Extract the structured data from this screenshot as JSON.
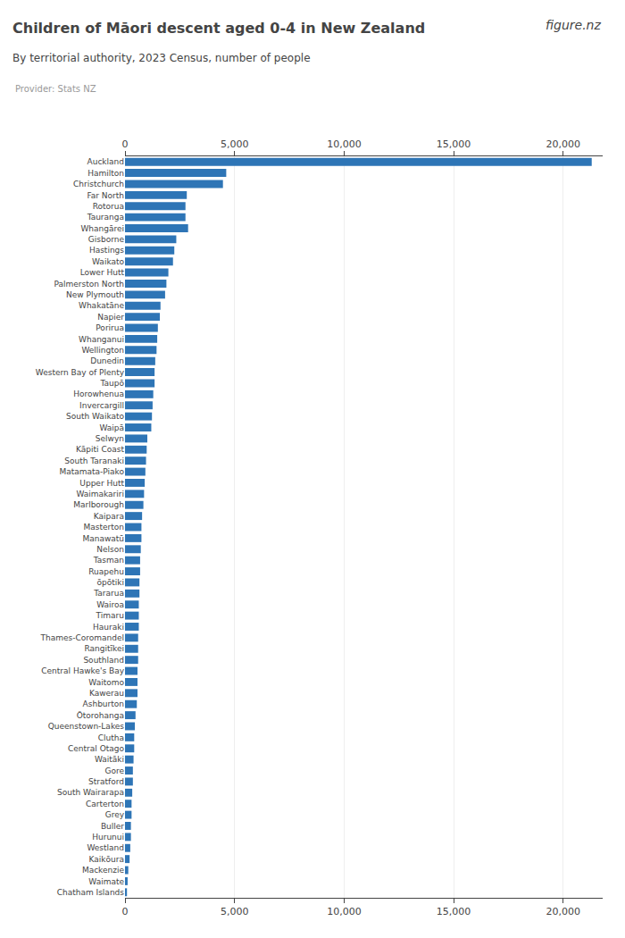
{
  "chart_data": {
    "type": "bar",
    "orientation": "horizontal",
    "title": "Children of Māori descent aged 0-4 in New Zealand",
    "subtitle": "By territorial authority, 2023 Census, number of people",
    "annotations": [
      "Provider: Stats NZ",
      "figure.nz"
    ],
    "color": "#2e75b6",
    "grid": true,
    "xlim": [
      0,
      21800
    ],
    "xticks": [
      0,
      {
        "value": 5000,
        "label": "5,000"
      },
      {
        "value": 10000,
        "label": "10,000"
      },
      {
        "value": 15000,
        "label": "15,000"
      },
      {
        "value": 20000,
        "label": "20,000"
      }
    ],
    "categories": [
      "Auckland",
      "Hamilton",
      "Christchurch",
      "Far North",
      "Rotorua",
      "Tauranga",
      "Whangārei",
      "Gisborne",
      "Hastings",
      "Waikato",
      "Lower Hutt",
      "Palmerston North",
      "New Plymouth",
      "Whakatāne",
      "Napier",
      "Porirua",
      "Whanganui",
      "Wellington",
      "Dunedin",
      "Western Bay of Plenty",
      "Taupō",
      "Horowhenua",
      "Invercargill",
      "South Waikato",
      "Waipā",
      "Selwyn",
      "Kāpiti Coast",
      "South Taranaki",
      "Matamata-Piako",
      "Upper Hutt",
      "Waimakariri",
      "Marlborough",
      "Kaipara",
      "Masterton",
      "Manawatū",
      "Nelson",
      "Tasman",
      "Ruapehu",
      "ōpōtiki",
      "Tararua",
      "Wairoa",
      "Timaru",
      "Hauraki",
      "Thames-Coromandel",
      "Rangitīkei",
      "Southland",
      "Central Hawke's Bay",
      "Waitomo",
      "Kawerau",
      "Ashburton",
      "Ōtorohanga",
      "Queenstown-Lakes",
      "Clutha",
      "Central Otago",
      "Waitāki",
      "Gore",
      "Stratford",
      "South Wairarapa",
      "Carterton",
      "Grey",
      "Buller",
      "Hurunui",
      "Westland",
      "Kaikōura",
      "Mackenzie",
      "Waimate",
      "Chatham Islands"
    ],
    "values": [
      21300,
      4620,
      4470,
      2820,
      2760,
      2760,
      2880,
      2340,
      2250,
      2190,
      1980,
      1890,
      1830,
      1620,
      1590,
      1500,
      1470,
      1440,
      1380,
      1350,
      1350,
      1290,
      1260,
      1230,
      1200,
      1020,
      990,
      960,
      930,
      900,
      870,
      840,
      780,
      750,
      750,
      720,
      690,
      690,
      660,
      660,
      630,
      630,
      630,
      600,
      600,
      600,
      570,
      570,
      570,
      540,
      480,
      450,
      420,
      420,
      390,
      360,
      360,
      330,
      300,
      300,
      270,
      270,
      240,
      210,
      150,
      120,
      90
    ]
  }
}
